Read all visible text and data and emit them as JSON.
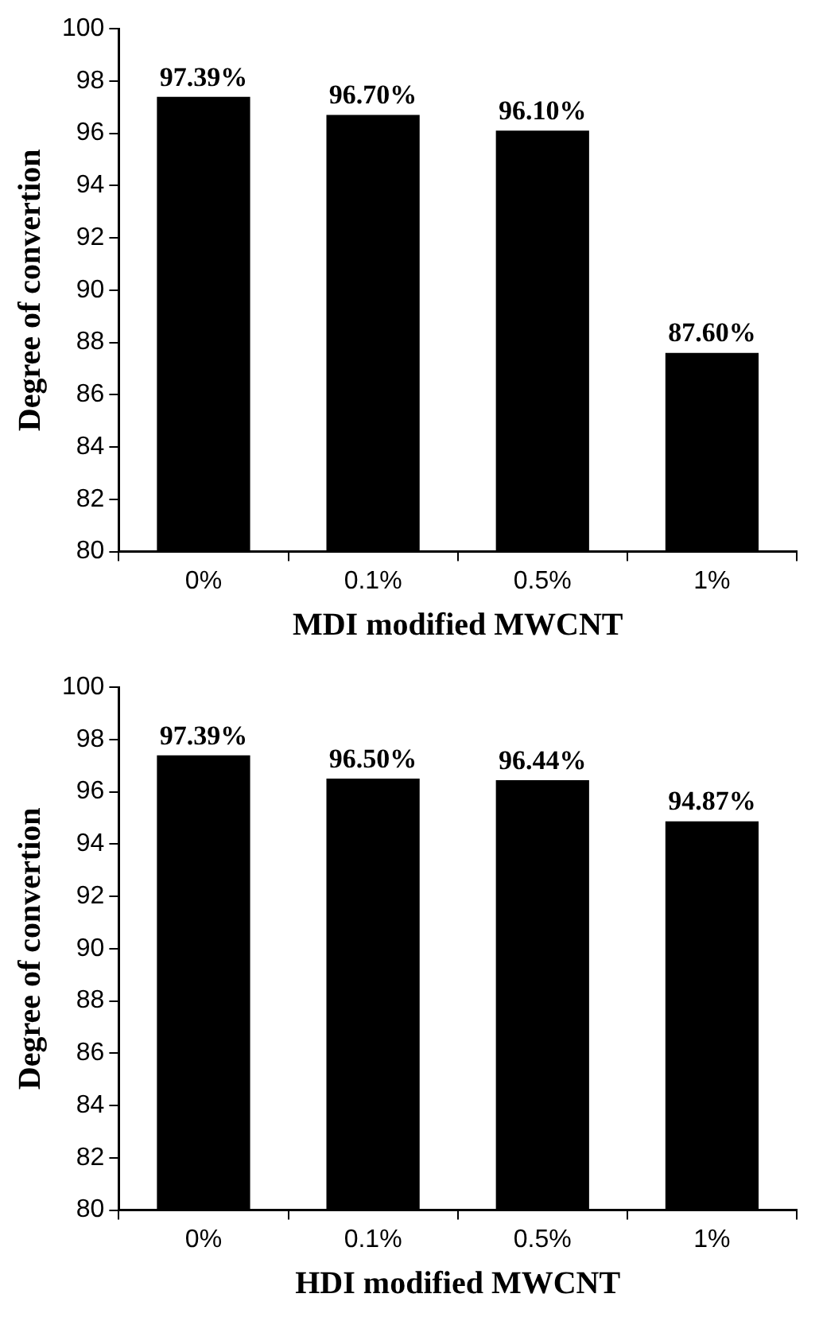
{
  "chart_data": [
    {
      "type": "bar",
      "xlabel": "MDI modified MWCNT",
      "ylabel": "Degree of convertion",
      "categories": [
        "0%",
        "0.1%",
        "0.5%",
        "1%"
      ],
      "values": [
        97.39,
        96.7,
        96.1,
        87.6
      ],
      "color": "#000000",
      "value_labels": [
        "97.39%",
        "96.70%",
        "96.10%",
        "87.60%"
      ],
      "ylim": [
        80,
        100
      ],
      "yticks": [
        80,
        82,
        84,
        86,
        88,
        90,
        92,
        94,
        96,
        98,
        100
      ],
      "legend": false
    },
    {
      "type": "bar",
      "xlabel": "HDI modified MWCNT",
      "ylabel": "Degree of convertion",
      "categories": [
        "0%",
        "0.1%",
        "0.5%",
        "1%"
      ],
      "values": [
        97.39,
        96.5,
        96.44,
        94.87
      ],
      "color": "#000000",
      "value_labels": [
        "97.39%",
        "96.50%",
        "96.44%",
        "94.87%"
      ],
      "ylim": [
        80,
        100
      ],
      "yticks": [
        80,
        82,
        84,
        86,
        88,
        90,
        92,
        94,
        96,
        98,
        100
      ],
      "legend": false
    }
  ]
}
